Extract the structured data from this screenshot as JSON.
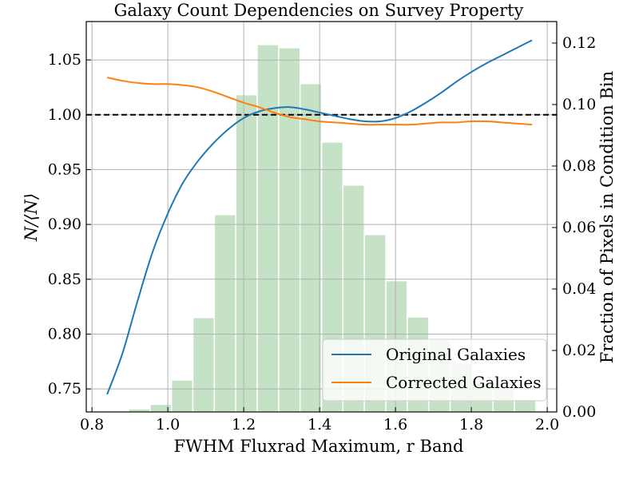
{
  "chart_data": {
    "type": "line",
    "title": "Galaxy Count Dependencies on Survey Property",
    "xlabel": "FWHM Fluxrad Maximum, r Band",
    "ylabel": "N/⟨N⟩",
    "ylabel_right": "Fraction of Pixels in Condition Bin",
    "xlim": [
      0.785,
      2.025
    ],
    "ylim": [
      0.729,
      1.085
    ],
    "ylim_right": [
      0.0,
      0.127
    ],
    "x_ticks": [
      "0.8",
      "1.0",
      "1.2",
      "1.4",
      "1.6",
      "1.8",
      "2.0"
    ],
    "y_ticks": [
      "0.75",
      "0.80",
      "0.85",
      "0.90",
      "0.95",
      "1.00",
      "1.05"
    ],
    "y_ticks_right": [
      "0.00",
      "0.02",
      "0.04",
      "0.06",
      "0.08",
      "0.10",
      "0.12"
    ],
    "reference_line": {
      "y": 1.0,
      "style": "dashed",
      "color": "#000000"
    },
    "grid": true,
    "legend_position": "lower-right",
    "series": [
      {
        "name": "Original Galaxies",
        "color": "#1f77b4",
        "x": [
          0.84,
          0.88,
          0.92,
          0.96,
          1.0,
          1.04,
          1.08,
          1.12,
          1.16,
          1.2,
          1.24,
          1.28,
          1.32,
          1.36,
          1.4,
          1.44,
          1.48,
          1.52,
          1.56,
          1.6,
          1.64,
          1.68,
          1.72,
          1.76,
          1.8,
          1.84,
          1.88,
          1.92,
          1.96
        ],
        "y": [
          0.745,
          0.782,
          0.83,
          0.875,
          0.91,
          0.938,
          0.958,
          0.974,
          0.987,
          0.997,
          1.003,
          1.006,
          1.007,
          1.005,
          1.002,
          0.999,
          0.996,
          0.994,
          0.994,
          0.997,
          1.003,
          1.011,
          1.02,
          1.03,
          1.039,
          1.047,
          1.054,
          1.061,
          1.068
        ]
      },
      {
        "name": "Corrected Galaxies",
        "color": "#ff7f0e",
        "x": [
          0.84,
          0.88,
          0.92,
          0.96,
          1.0,
          1.04,
          1.08,
          1.12,
          1.16,
          1.2,
          1.24,
          1.28,
          1.32,
          1.36,
          1.4,
          1.44,
          1.48,
          1.52,
          1.56,
          1.6,
          1.64,
          1.68,
          1.72,
          1.76,
          1.8,
          1.84,
          1.88,
          1.92,
          1.96
        ],
        "y": [
          1.034,
          1.031,
          1.029,
          1.028,
          1.028,
          1.027,
          1.025,
          1.021,
          1.016,
          1.011,
          1.007,
          1.002,
          0.998,
          0.996,
          0.994,
          0.993,
          0.992,
          0.991,
          0.991,
          0.991,
          0.991,
          0.992,
          0.993,
          0.993,
          0.994,
          0.994,
          0.993,
          0.992,
          0.991
        ]
      }
    ],
    "histogram": {
      "color": "#c6e2c6",
      "bin_width": 0.0565,
      "bin_centers": [
        0.8683,
        0.9248,
        0.9813,
        1.0378,
        1.0943,
        1.1508,
        1.2073,
        1.2638,
        1.3203,
        1.3768,
        1.4333,
        1.4898,
        1.5463,
        1.6028,
        1.6593,
        1.7158,
        1.7723,
        1.8288,
        1.8853,
        1.9418
      ],
      "values": [
        0.0002,
        0.001,
        0.0025,
        0.0104,
        0.0307,
        0.0642,
        0.1032,
        0.1195,
        0.1185,
        0.1068,
        0.0878,
        0.0738,
        0.0577,
        0.0427,
        0.0309,
        0.0234,
        0.0159,
        0.0096,
        0.0074,
        0.0042
      ]
    }
  }
}
